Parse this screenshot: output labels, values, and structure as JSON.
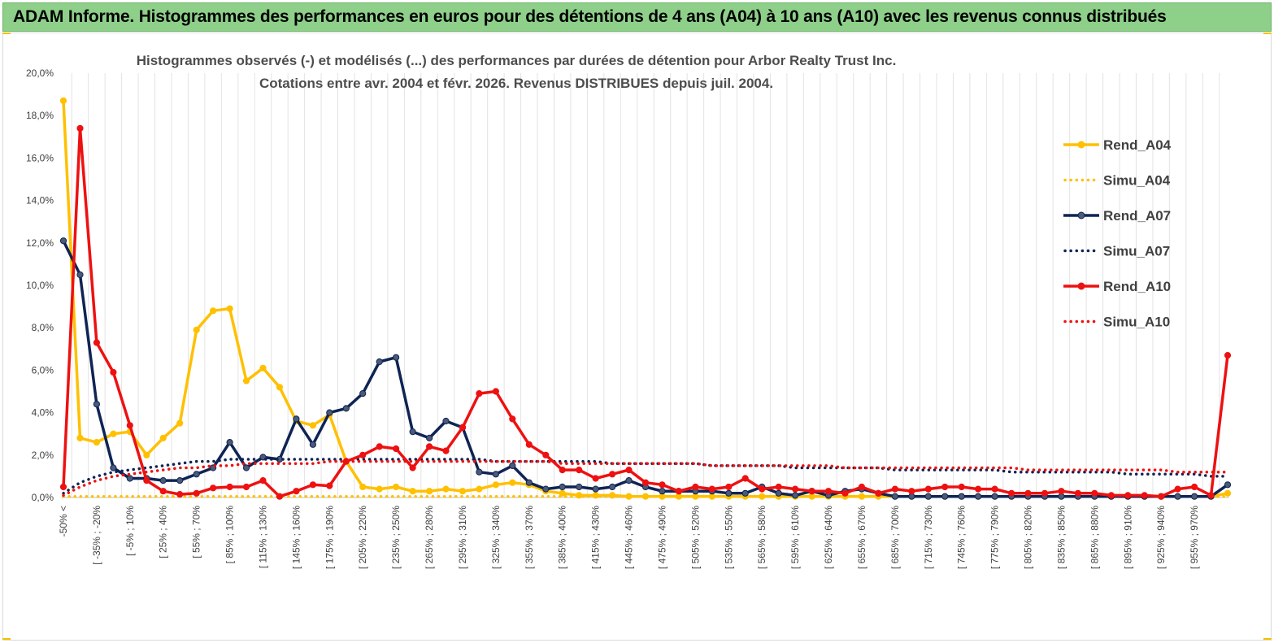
{
  "banner": {
    "title": "ADAM Informe. Histogrammes des performances en euros pour des détentions de 4 ans (A04) à 10 ans (A10) avec les revenus connus distribués"
  },
  "chart_data": {
    "type": "line",
    "title": "Histogrammes observés (-) et modélisés (...) des performances par durées de détention pour Arbor Realty Trust Inc.",
    "subtitle": "Cotations entre avr. 2004 et févr. 2026. Revenus DISTRIBUES depuis juil. 2004.",
    "xlabel": "",
    "ylabel": "",
    "ylim": [
      0,
      0.2
    ],
    "yticks": [
      "0,0%",
      "2,0%",
      "4,0%",
      "6,0%",
      "8,0%",
      "10,0%",
      "12,0%",
      "14,0%",
      "16,0%",
      "18,0%",
      "20,0%"
    ],
    "grid": "vertical",
    "legend_position": "right",
    "x_tick_labels": [
      "-50% <",
      "[ -35% ; -20%",
      "[ -5% ; 10%",
      "[ 25% ; 40%",
      "[ 55% ; 70%",
      "[ 85% ; 100%",
      "[ 115% ; 130%",
      "[ 145% ; 160%",
      "[ 175% ; 190%",
      "[ 205% ; 220%",
      "[ 235% ; 250%",
      "[ 265% ; 280%",
      "[ 295% ; 310%",
      "[ 325% ; 340%",
      "[ 355% ; 370%",
      "[ 385% ; 400%",
      "[ 415% ; 430%",
      "[ 445% ; 460%",
      "[ 475% ; 490%",
      "[ 505% ; 520%",
      "[ 535% ; 550%",
      "[ 565% ; 580%",
      "[ 595% ; 610%",
      "[ 625% ; 640%",
      "[ 655% ; 670%",
      "[ 685% ; 700%",
      "[ 715% ; 730%",
      "[ 745% ; 760%",
      "[ 775% ; 790%",
      "[ 805% ; 820%",
      "[ 835% ; 850%",
      "[ 865% ; 880%",
      "[ 895% ; 910%",
      "[ 925% ; 940%",
      "[ 955% ; 970%"
    ],
    "n_categories": 71,
    "series": [
      {
        "name": "Rend_A04",
        "style": "solid",
        "color": "#ffc000",
        "values": [
          0.187,
          0.028,
          0.026,
          0.03,
          0.031,
          0.02,
          0.028,
          0.035,
          0.079,
          0.088,
          0.089,
          0.055,
          0.061,
          0.052,
          0.036,
          0.034,
          0.039,
          0.017,
          0.005,
          0.004,
          0.005,
          0.003,
          0.003,
          0.004,
          0.003,
          0.004,
          0.006,
          0.007,
          0.006,
          0.003,
          0.002,
          0.001,
          0.001,
          0.001,
          0.0005,
          0.0005,
          0.0005,
          0.0005,
          0.0005,
          0.0005,
          0.0005,
          0.0005,
          0.0005,
          0.0005,
          0.0005,
          0.0005,
          0.0005,
          0.0005,
          0.0005,
          0.0005,
          0.0005,
          0.0005,
          0.0005,
          0.0005,
          0.0005,
          0.0005,
          0.0005,
          0.0005,
          0.0005,
          0.0005,
          0.0005,
          0.0005,
          0.0005,
          0.0005,
          0.0005,
          0.0005,
          0.0005,
          0.0005,
          0.0005,
          0.0005,
          0.002
        ]
      },
      {
        "name": "Simu_A04",
        "style": "dotted",
        "color": "#ffc000",
        "values": [
          0.0005,
          0.0005,
          0.0005,
          0.0005,
          0.0005,
          0.0005,
          0.0005,
          0.0005,
          0.0005,
          0.0005,
          0.0005,
          0.0005,
          0.0005,
          0.0005,
          0.0005,
          0.0005,
          0.0005,
          0.0005,
          0.0005,
          0.0005,
          0.0005,
          0.0005,
          0.0005,
          0.0005,
          0.0005,
          0.0005,
          0.0005,
          0.0005,
          0.0005,
          0.0005,
          0.0005,
          0.0005,
          0.0005,
          0.0005,
          0.0005,
          0.0005,
          0.0005,
          0.0005,
          0.0005,
          0.0005,
          0.0005,
          0.0005,
          0.0005,
          0.0005,
          0.0005,
          0.0005,
          0.0005,
          0.0005,
          0.0005,
          0.0005,
          0.0005,
          0.0005,
          0.0005,
          0.0005,
          0.0005,
          0.0005,
          0.0005,
          0.0005,
          0.0005,
          0.0005,
          0.0005,
          0.0005,
          0.0005,
          0.0005,
          0.0005,
          0.0005,
          0.0005,
          0.0005,
          0.0005,
          0.0005,
          0.0005
        ]
      },
      {
        "name": "Rend_A07",
        "style": "solid",
        "color": "#0f2454",
        "values": [
          0.121,
          0.105,
          0.044,
          0.014,
          0.009,
          0.009,
          0.008,
          0.008,
          0.011,
          0.014,
          0.026,
          0.014,
          0.019,
          0.018,
          0.037,
          0.025,
          0.04,
          0.042,
          0.049,
          0.064,
          0.066,
          0.031,
          0.028,
          0.036,
          0.033,
          0.012,
          0.011,
          0.015,
          0.007,
          0.004,
          0.005,
          0.005,
          0.004,
          0.005,
          0.008,
          0.005,
          0.003,
          0.003,
          0.003,
          0.003,
          0.002,
          0.002,
          0.005,
          0.002,
          0.001,
          0.003,
          0.001,
          0.003,
          0.004,
          0.002,
          0.0005,
          0.0005,
          0.0005,
          0.0005,
          0.0005,
          0.0005,
          0.0005,
          0.0005,
          0.0005,
          0.0005,
          0.0005,
          0.0005,
          0.0005,
          0.0005,
          0.0005,
          0.0005,
          0.0005,
          0.0005,
          0.0005,
          0.0005,
          0.006
        ]
      },
      {
        "name": "Simu_A07",
        "style": "dotted",
        "color": "#0f2454",
        "values": [
          0.002,
          0.007,
          0.01,
          0.012,
          0.013,
          0.014,
          0.015,
          0.016,
          0.017,
          0.017,
          0.018,
          0.018,
          0.018,
          0.018,
          0.018,
          0.018,
          0.018,
          0.018,
          0.018,
          0.018,
          0.018,
          0.018,
          0.018,
          0.018,
          0.018,
          0.018,
          0.017,
          0.017,
          0.017,
          0.017,
          0.017,
          0.017,
          0.017,
          0.016,
          0.016,
          0.016,
          0.016,
          0.016,
          0.016,
          0.015,
          0.015,
          0.015,
          0.015,
          0.015,
          0.014,
          0.014,
          0.014,
          0.014,
          0.014,
          0.014,
          0.013,
          0.013,
          0.013,
          0.013,
          0.013,
          0.013,
          0.013,
          0.012,
          0.012,
          0.012,
          0.012,
          0.012,
          0.012,
          0.012,
          0.011,
          0.011,
          0.011,
          0.011,
          0.011,
          0.01,
          0.01
        ]
      },
      {
        "name": "Rend_A10",
        "style": "solid",
        "color": "#ee1111",
        "values": [
          0.005,
          0.174,
          0.073,
          0.059,
          0.034,
          0.008,
          0.003,
          0.0015,
          0.002,
          0.0045,
          0.005,
          0.005,
          0.008,
          0.0005,
          0.003,
          0.006,
          0.0055,
          0.017,
          0.02,
          0.024,
          0.023,
          0.014,
          0.024,
          0.022,
          0.033,
          0.049,
          0.05,
          0.037,
          0.025,
          0.02,
          0.013,
          0.013,
          0.009,
          0.011,
          0.013,
          0.007,
          0.006,
          0.003,
          0.005,
          0.004,
          0.005,
          0.009,
          0.004,
          0.005,
          0.004,
          0.003,
          0.003,
          0.002,
          0.005,
          0.002,
          0.004,
          0.003,
          0.004,
          0.005,
          0.005,
          0.004,
          0.004,
          0.002,
          0.002,
          0.002,
          0.003,
          0.002,
          0.002,
          0.001,
          0.001,
          0.001,
          0.0005,
          0.004,
          0.005,
          0.001,
          0.067
        ]
      },
      {
        "name": "Simu_A10",
        "style": "dotted",
        "color": "#ee1111",
        "values": [
          0.001,
          0.005,
          0.008,
          0.01,
          0.011,
          0.012,
          0.013,
          0.014,
          0.014,
          0.015,
          0.015,
          0.016,
          0.016,
          0.016,
          0.016,
          0.016,
          0.017,
          0.017,
          0.017,
          0.017,
          0.017,
          0.017,
          0.017,
          0.017,
          0.017,
          0.017,
          0.017,
          0.017,
          0.017,
          0.017,
          0.016,
          0.016,
          0.016,
          0.016,
          0.016,
          0.016,
          0.016,
          0.016,
          0.016,
          0.015,
          0.015,
          0.015,
          0.015,
          0.015,
          0.015,
          0.015,
          0.015,
          0.014,
          0.014,
          0.014,
          0.014,
          0.014,
          0.014,
          0.014,
          0.014,
          0.014,
          0.014,
          0.014,
          0.013,
          0.013,
          0.013,
          0.013,
          0.013,
          0.013,
          0.013,
          0.013,
          0.013,
          0.012,
          0.012,
          0.012,
          0.012
        ]
      }
    ]
  }
}
